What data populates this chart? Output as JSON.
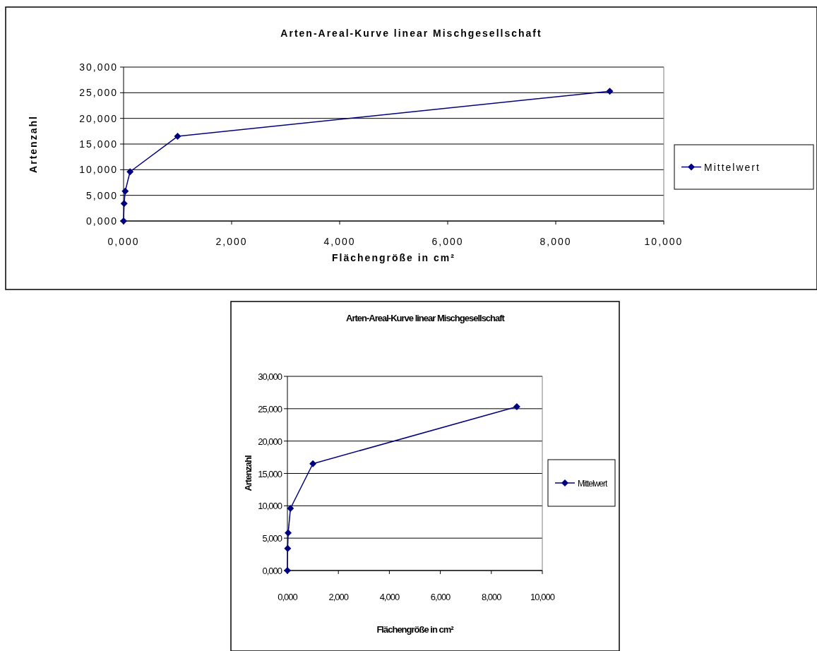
{
  "chart_data": [
    {
      "type": "line",
      "title": "Arten-Areal-Kurve linear Mischgesellschaft",
      "xlabel": "Flächengröße in cm²",
      "ylabel": "Artenzahl",
      "x": [
        0,
        0.01,
        0.03,
        0.12,
        1,
        9
      ],
      "series": [
        {
          "name": "Mittelwert",
          "color": "#000080",
          "values": [
            0,
            3.4,
            5.8,
            9.6,
            16.5,
            25.3
          ]
        }
      ],
      "xlim": [
        0,
        10
      ],
      "xticks": [
        {
          "value": 0,
          "label": "0,000"
        },
        {
          "value": 2,
          "label": "2,000"
        },
        {
          "value": 4,
          "label": "4,000"
        },
        {
          "value": 6,
          "label": "6,000"
        },
        {
          "value": 8,
          "label": "8,000"
        },
        {
          "value": 10,
          "label": "10,000"
        }
      ],
      "ylim": [
        0,
        30
      ],
      "yticks": [
        {
          "value": 0,
          "label": "0,000"
        },
        {
          "value": 5,
          "label": "5,000"
        },
        {
          "value": 10,
          "label": "10,000"
        },
        {
          "value": 15,
          "label": "15,000"
        },
        {
          "value": 20,
          "label": "20,000"
        },
        {
          "value": 25,
          "label": "25,000"
        },
        {
          "value": 30,
          "label": "30,000"
        }
      ],
      "grid": "y",
      "legend": "right",
      "marker": "diamond",
      "line_style": "solid"
    },
    {
      "type": "line",
      "title": "Arten-Areal-Kurve linear Mischgesellschaft",
      "xlabel": "Flächengröße in cm²",
      "ylabel": "Artenzahl",
      "x": [
        0,
        0.01,
        0.03,
        0.12,
        1,
        9
      ],
      "series": [
        {
          "name": "Mittelwert",
          "color": "#000080",
          "values": [
            0,
            3.4,
            5.8,
            9.6,
            16.5,
            25.3
          ]
        }
      ],
      "xlim": [
        0,
        10
      ],
      "xticks": [
        {
          "value": 0,
          "label": "0,000"
        },
        {
          "value": 2,
          "label": "2,000"
        },
        {
          "value": 4,
          "label": "4,000"
        },
        {
          "value": 6,
          "label": "6,000"
        },
        {
          "value": 8,
          "label": "8,000"
        },
        {
          "value": 10,
          "label": "10,000"
        }
      ],
      "ylim": [
        0,
        30
      ],
      "yticks": [
        {
          "value": 0,
          "label": "0,000"
        },
        {
          "value": 5,
          "label": "5,000"
        },
        {
          "value": 10,
          "label": "10,000"
        },
        {
          "value": 15,
          "label": "15,000"
        },
        {
          "value": 20,
          "label": "20,000"
        },
        {
          "value": 25,
          "label": "25,000"
        },
        {
          "value": 30,
          "label": "30,000"
        }
      ],
      "grid": "y",
      "legend": "right",
      "marker": "diamond",
      "line_style": "solid"
    }
  ]
}
